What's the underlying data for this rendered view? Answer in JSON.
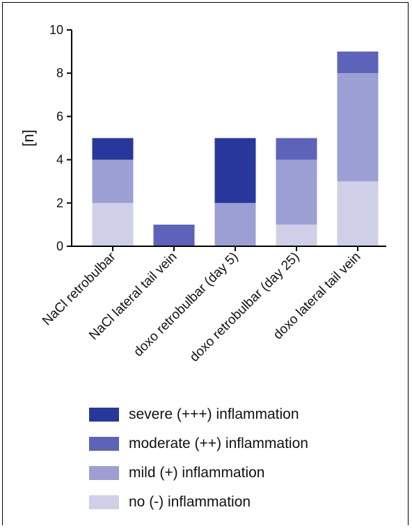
{
  "chart_data": {
    "type": "bar",
    "stacked": true,
    "categories": [
      "NaCl retrobulbar",
      "NaCl lateral tail vein",
      "doxo retrobulbar (day 5)",
      "doxo retrobulbar (day 25)",
      "doxo lateral tail vein"
    ],
    "series": [
      {
        "name": "no (-) inflammation",
        "values": [
          2,
          0,
          0,
          1,
          3
        ],
        "color": "#cfd0e8"
      },
      {
        "name": "mild (+) inflammation",
        "values": [
          2,
          0,
          2,
          3,
          5
        ],
        "color": "#9c9fd4"
      },
      {
        "name": "moderate (++) inflammation",
        "values": [
          0,
          1,
          0,
          1,
          1
        ],
        "color": "#5c63b8"
      },
      {
        "name": "severe (+++) inflammation",
        "values": [
          1,
          0,
          3,
          0,
          0
        ],
        "color": "#28379c"
      }
    ],
    "legend_order": [
      "severe (+++) inflammation",
      "moderate (++) inflammation",
      "mild (+) inflammation",
      "no (-) inflammation"
    ],
    "ylabel": "[n]",
    "xlabel": "",
    "title": "",
    "ylim": [
      0,
      10
    ],
    "yticks": [
      "0",
      "2",
      "4",
      "6",
      "8",
      "10"
    ],
    "grid": false,
    "legend_position": "bottom"
  }
}
